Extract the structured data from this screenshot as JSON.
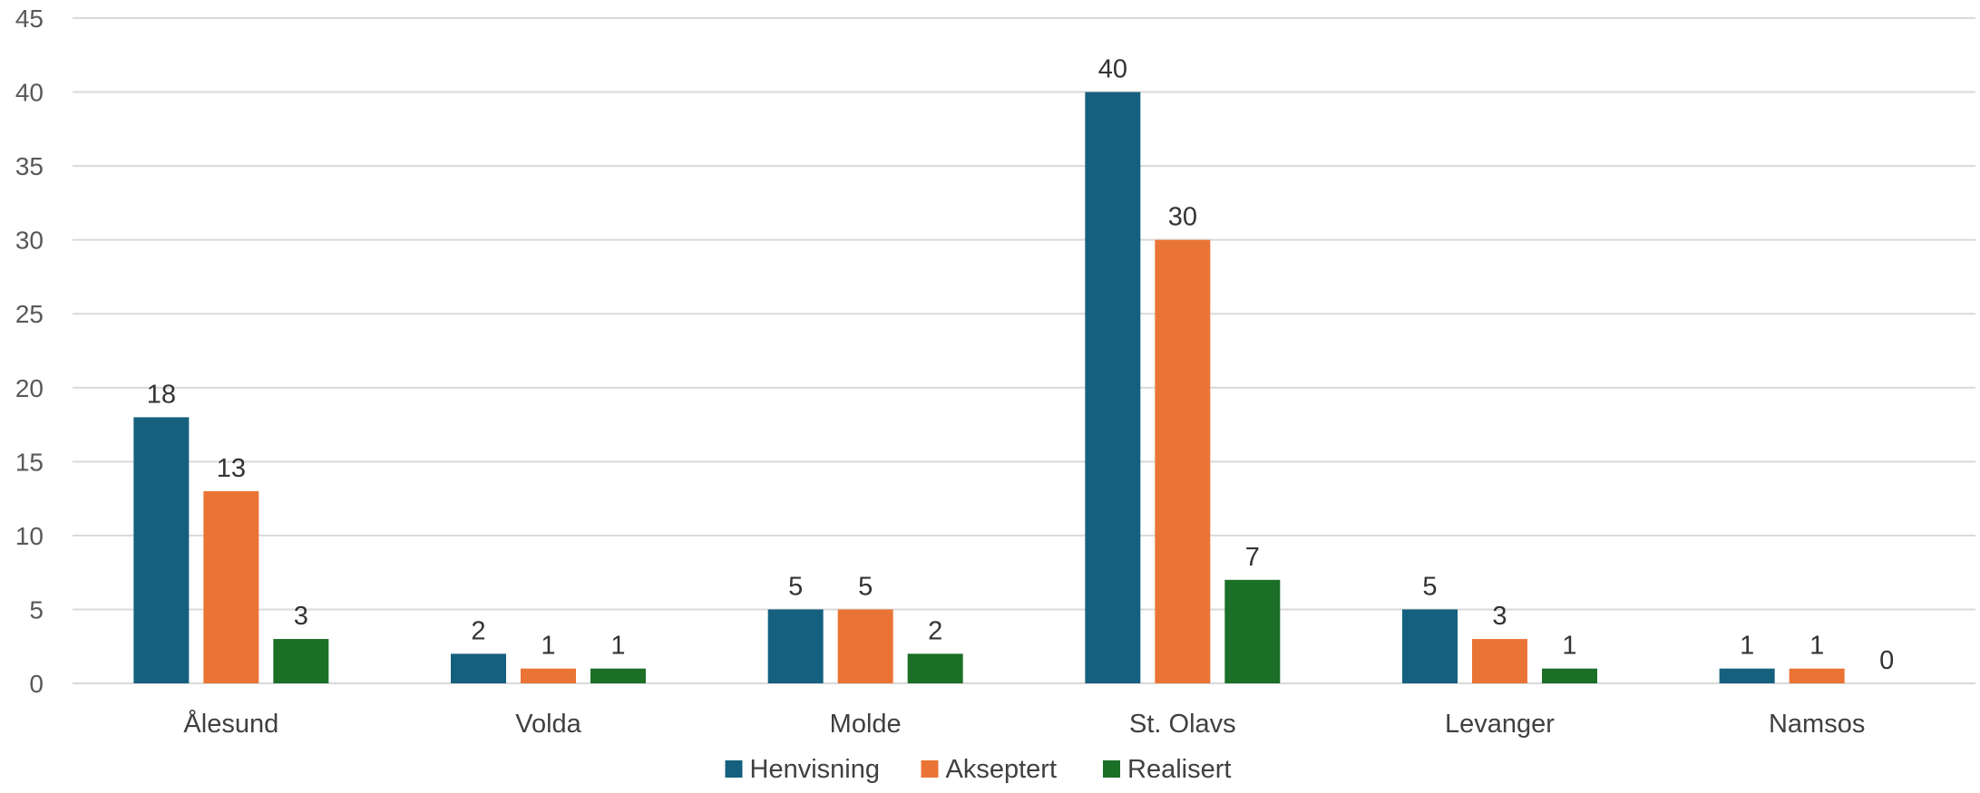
{
  "chart_data": {
    "type": "bar",
    "categories": [
      "Ålesund",
      "Volda",
      "Molde",
      "St. Olavs",
      "Levanger",
      "Namsos"
    ],
    "series": [
      {
        "name": "Henvisning",
        "color": "#16607f",
        "values": [
          18,
          2,
          5,
          40,
          5,
          1
        ]
      },
      {
        "name": "Akseptert",
        "color": "#ea7435",
        "values": [
          13,
          1,
          5,
          30,
          3,
          1
        ]
      },
      {
        "name": "Realisert",
        "color": "#1b6f27",
        "values": [
          3,
          1,
          2,
          7,
          1,
          0
        ]
      }
    ],
    "y_ticks": [
      "0",
      "5",
      "10",
      "15",
      "20",
      "25",
      "30",
      "35",
      "40",
      "45"
    ],
    "ylim": [
      0,
      45
    ],
    "grid": true,
    "legend_position": "bottom",
    "data_labels": true
  }
}
